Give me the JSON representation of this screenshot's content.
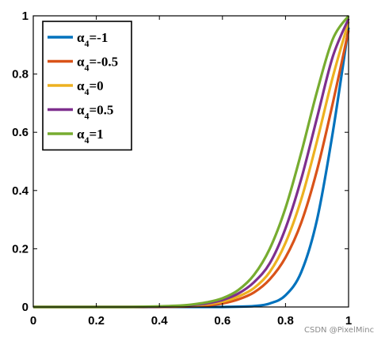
{
  "chart_data": {
    "type": "line",
    "title": "",
    "xlabel": "",
    "ylabel": "",
    "xlim": [
      0,
      1
    ],
    "ylim": [
      0,
      1
    ],
    "xticks": [
      "0",
      "0.2",
      "0.4",
      "0.6",
      "0.8",
      "1"
    ],
    "yticks": [
      "0",
      "0.2",
      "0.4",
      "0.6",
      "0.8",
      "1"
    ],
    "grid": false,
    "legend_position": "top-left",
    "x": [
      0,
      0.05,
      0.1,
      0.15,
      0.2,
      0.25,
      0.3,
      0.35,
      0.4,
      0.45,
      0.5,
      0.55,
      0.6,
      0.65,
      0.7,
      0.75,
      0.8,
      0.85,
      0.9,
      0.95,
      1
    ],
    "series": [
      {
        "name": "α4=-1",
        "legend_symbol": "α",
        "legend_sub": "4",
        "legend_rest": "=-1",
        "color": "#0072BD",
        "values": [
          0,
          0,
          0,
          0,
          0,
          0,
          0,
          0,
          0,
          0,
          0,
          0,
          0,
          0.001,
          0.003,
          0.012,
          0.04,
          0.12,
          0.3,
          0.6,
          0.96
        ]
      },
      {
        "name": "α4=-0.5",
        "legend_symbol": "α",
        "legend_sub": "4",
        "legend_rest": "=-0.5",
        "color": "#D95319",
        "values": [
          0,
          0,
          0,
          0,
          0,
          0,
          0,
          0,
          0,
          0.001,
          0.002,
          0.005,
          0.012,
          0.026,
          0.05,
          0.095,
          0.17,
          0.29,
          0.47,
          0.7,
          0.95
        ]
      },
      {
        "name": "α4=0",
        "legend_symbol": "α",
        "legend_sub": "4",
        "legend_rest": "=0",
        "color": "#EDB120",
        "values": [
          0,
          0,
          0,
          0,
          0,
          0,
          0,
          0,
          0.001,
          0.002,
          0.004,
          0.009,
          0.018,
          0.036,
          0.065,
          0.12,
          0.22,
          0.37,
          0.57,
          0.79,
          0.98
        ]
      },
      {
        "name": "α4=0.5",
        "legend_symbol": "α",
        "legend_sub": "4",
        "legend_rest": "=0.5",
        "color": "#7E2F8E",
        "values": [
          0,
          0,
          0,
          0,
          0,
          0,
          0,
          0,
          0.001,
          0.003,
          0.006,
          0.012,
          0.024,
          0.046,
          0.085,
          0.15,
          0.27,
          0.44,
          0.65,
          0.86,
          0.99
        ]
      },
      {
        "name": "α4=1",
        "legend_symbol": "α",
        "legend_sub": "4",
        "legend_rest": "=1",
        "color": "#77AC30",
        "values": [
          0,
          0,
          0,
          0,
          0,
          0,
          0,
          0.001,
          0.002,
          0.004,
          0.008,
          0.016,
          0.03,
          0.058,
          0.11,
          0.2,
          0.34,
          0.53,
          0.74,
          0.92,
          1.0
        ]
      }
    ]
  },
  "watermark": "CSDN @PixelMinc"
}
